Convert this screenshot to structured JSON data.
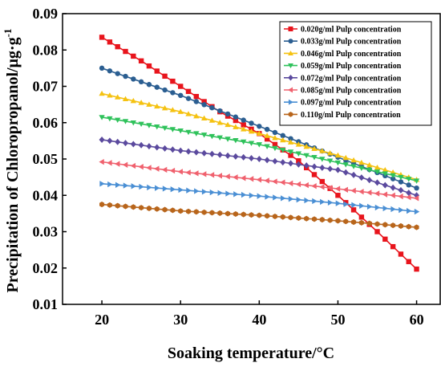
{
  "chart_data": {
    "type": "line",
    "xlabel": "Soaking temperature/°C",
    "ylabel": "Precipitation of Chloropropanol/μg·g",
    "ylabel_sup": "-1",
    "xlim": [
      15,
      63
    ],
    "ylim": [
      0.01,
      0.09
    ],
    "xticks": [
      20,
      30,
      40,
      50,
      60
    ],
    "yticks": [
      0.01,
      0.02,
      0.03,
      0.04,
      0.05,
      0.06,
      0.07,
      0.08,
      0.09
    ],
    "ytick_labels": [
      "0.01",
      "0.02",
      "0.03",
      "0.04",
      "0.05",
      "0.06",
      "0.07",
      "0.08",
      "0.09"
    ],
    "legend_position": "top-right",
    "grid": false,
    "series": [
      {
        "name": "0.020g/ml Pulp concentration",
        "color": "#e8141c",
        "marker": "square",
        "points": [
          [
            20,
            0.0835
          ],
          [
            25,
            0.077
          ],
          [
            30,
            0.07
          ],
          [
            35,
            0.063
          ],
          [
            40,
            0.057
          ],
          [
            45,
            0.0495
          ],
          [
            50,
            0.04
          ],
          [
            55,
            0.03
          ],
          [
            60,
            0.0197
          ]
        ]
      },
      {
        "name": "0.033g/ml Pulp concentration",
        "color": "#2b5e91",
        "marker": "circle",
        "points": [
          [
            20,
            0.075
          ],
          [
            30,
            0.0675
          ],
          [
            40,
            0.059
          ],
          [
            50,
            0.0505
          ],
          [
            60,
            0.042
          ]
        ]
      },
      {
        "name": "0.046g/ml Pulp concentration",
        "color": "#f5c211",
        "marker": "triangle-up",
        "points": [
          [
            20,
            0.068
          ],
          [
            30,
            0.063
          ],
          [
            40,
            0.057
          ],
          [
            50,
            0.051
          ],
          [
            60,
            0.0443
          ]
        ]
      },
      {
        "name": "0.059g/ml Pulp concentration",
        "color": "#2fc25b",
        "marker": "triangle-down",
        "points": [
          [
            20,
            0.0615
          ],
          [
            30,
            0.0578
          ],
          [
            40,
            0.054
          ],
          [
            50,
            0.049
          ],
          [
            60,
            0.044
          ]
        ]
      },
      {
        "name": "0.072g/ml Pulp concentration",
        "color": "#5b4a9e",
        "marker": "diamond",
        "points": [
          [
            20,
            0.0553
          ],
          [
            30,
            0.0523
          ],
          [
            40,
            0.05
          ],
          [
            50,
            0.047
          ],
          [
            60,
            0.04
          ]
        ]
      },
      {
        "name": "0.085g/ml Pulp concentration",
        "color": "#f0616e",
        "marker": "triangle-left",
        "points": [
          [
            20,
            0.0492
          ],
          [
            30,
            0.0465
          ],
          [
            40,
            0.0443
          ],
          [
            50,
            0.0418
          ],
          [
            60,
            0.0392
          ]
        ]
      },
      {
        "name": "0.097g/ml Pulp concentration",
        "color": "#4a8fd4",
        "marker": "triangle-right",
        "points": [
          [
            20,
            0.0432
          ],
          [
            30,
            0.0415
          ],
          [
            40,
            0.0398
          ],
          [
            50,
            0.0378
          ],
          [
            60,
            0.0355
          ]
        ]
      },
      {
        "name": "0.110g/ml Pulp concentration",
        "color": "#b8651b",
        "marker": "hexagon",
        "points": [
          [
            20,
            0.0375
          ],
          [
            30,
            0.0357
          ],
          [
            40,
            0.0345
          ],
          [
            50,
            0.033
          ],
          [
            60,
            0.0312
          ]
        ]
      }
    ]
  }
}
